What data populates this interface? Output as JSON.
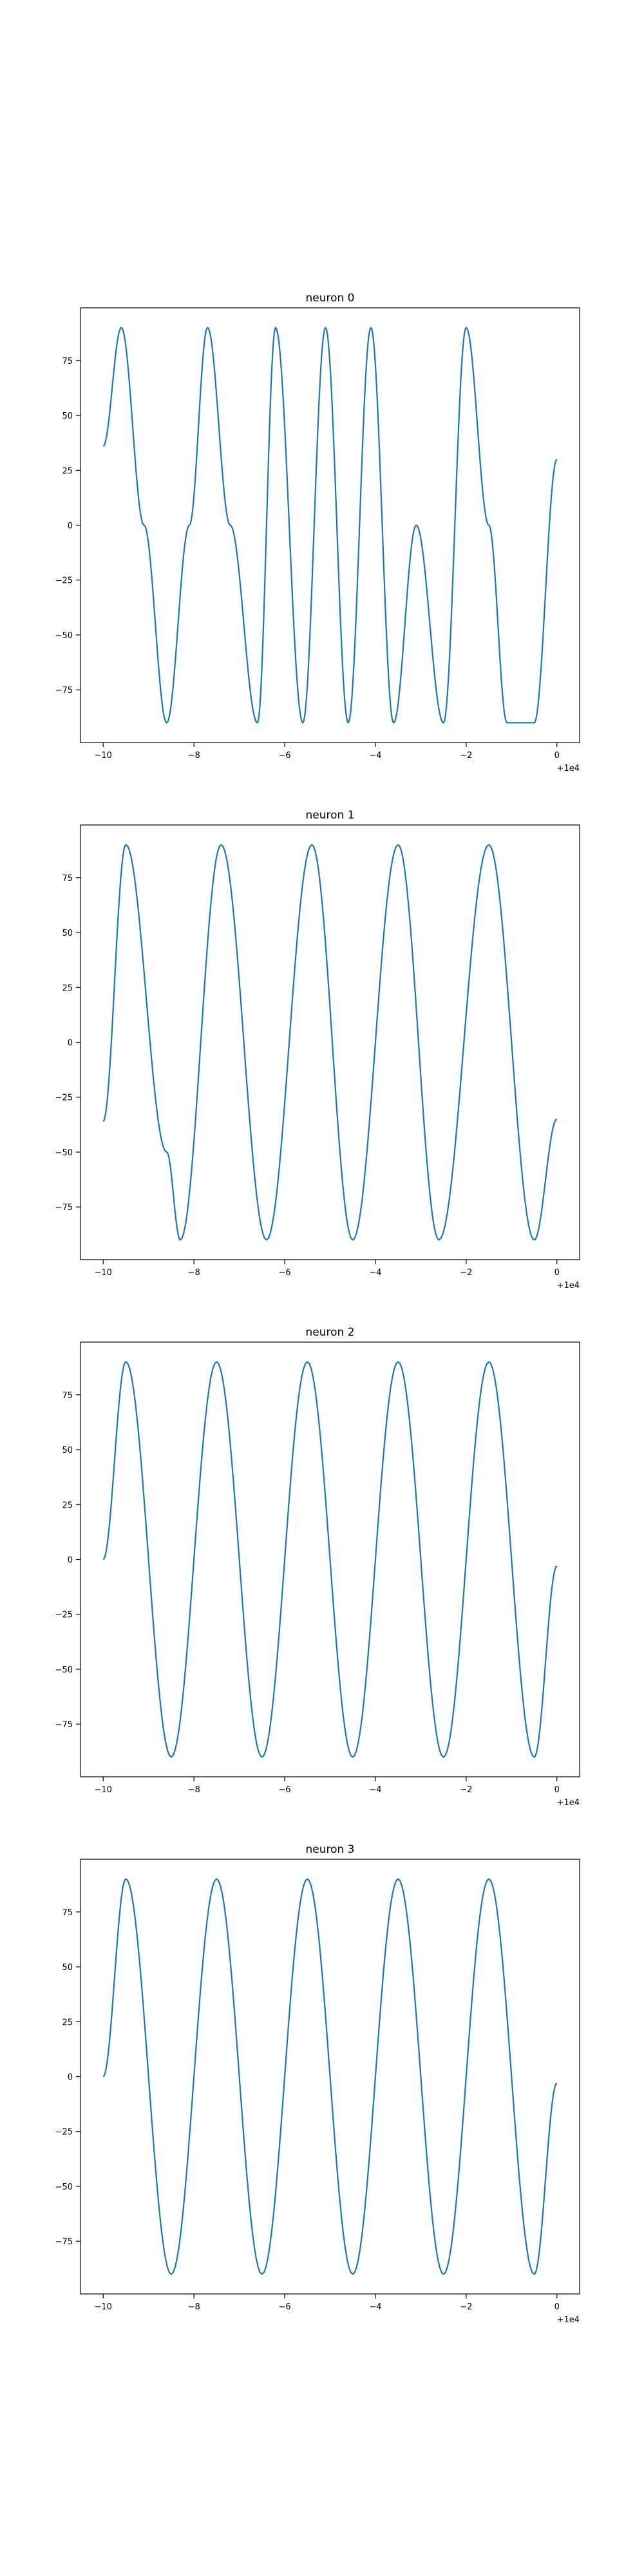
{
  "figure": {
    "line_color": "#1f77b4",
    "x_offset_label": "+1e4"
  },
  "chart_data": [
    {
      "type": "line",
      "title": "neuron 0",
      "xlabel": "",
      "ylabel": "",
      "x_offset_label": "+1e4",
      "xlim": [
        -10.5,
        0.5
      ],
      "ylim": [
        -99,
        99
      ],
      "x_ticks": [
        -10,
        -8,
        -6,
        -4,
        -2,
        0
      ],
      "x_tick_labels": [
        "−10",
        "−8",
        "−6",
        "−4",
        "−2",
        "0"
      ],
      "y_ticks": [
        75,
        50,
        25,
        0,
        -25,
        -50,
        -75
      ],
      "y_tick_labels": [
        "75",
        "50",
        "25",
        "0",
        "−25",
        "−50",
        "−75"
      ],
      "grid": false,
      "series": [
        {
          "color": "#1f77b4",
          "x": [
            -10.0,
            -9.6,
            -9.1,
            -8.6,
            -8.1,
            -7.7,
            -7.2,
            -6.6,
            -6.2,
            -5.6,
            -5.1,
            -4.6,
            -4.1,
            -3.6,
            -3.1,
            -2.5,
            -2.0,
            -1.5,
            -1.1,
            -0.5,
            0.0
          ],
          "y": [
            36,
            90,
            0,
            -90,
            0,
            90,
            0,
            -90,
            90,
            -90,
            90,
            -90,
            90,
            -90,
            0,
            -90,
            90,
            0,
            -90,
            -90,
            30
          ]
        }
      ]
    },
    {
      "type": "line",
      "title": "neuron 1",
      "xlabel": "",
      "ylabel": "",
      "x_offset_label": "+1e4",
      "xlim": [
        -10.5,
        0.5
      ],
      "ylim": [
        -99,
        99
      ],
      "x_ticks": [
        -10,
        -8,
        -6,
        -4,
        -2,
        0
      ],
      "x_tick_labels": [
        "−10",
        "−8",
        "−6",
        "−4",
        "−2",
        "0"
      ],
      "y_ticks": [
        75,
        50,
        25,
        0,
        -25,
        -50,
        -75
      ],
      "y_tick_labels": [
        "75",
        "50",
        "25",
        "0",
        "−25",
        "−50",
        "−75"
      ],
      "grid": false,
      "series": [
        {
          "color": "#1f77b4",
          "x": [
            -10.0,
            -9.5,
            -8.6,
            -8.3,
            -7.4,
            -6.4,
            -5.4,
            -4.5,
            -3.5,
            -2.6,
            -1.5,
            -0.5,
            0.0
          ],
          "y": [
            -36,
            90,
            -50,
            -90,
            90,
            -90,
            90,
            -90,
            90,
            -90,
            90,
            -90,
            -35
          ]
        }
      ]
    },
    {
      "type": "line",
      "title": "neuron 2",
      "xlabel": "",
      "ylabel": "",
      "x_offset_label": "+1e4",
      "xlim": [
        -10.5,
        0.5
      ],
      "ylim": [
        -99,
        99
      ],
      "x_ticks": [
        -10,
        -8,
        -6,
        -4,
        -2,
        0
      ],
      "x_tick_labels": [
        "−10",
        "−8",
        "−6",
        "−4",
        "−2",
        "0"
      ],
      "y_ticks": [
        75,
        50,
        25,
        0,
        -25,
        -50,
        -75
      ],
      "y_tick_labels": [
        "75",
        "50",
        "25",
        "0",
        "−25",
        "−50",
        "−75"
      ],
      "grid": false,
      "series": [
        {
          "color": "#1f77b4",
          "x": [
            -10.0,
            -9.5,
            -8.5,
            -7.5,
            -6.5,
            -5.5,
            -4.5,
            -3.5,
            -2.5,
            -1.5,
            -0.5,
            0.0
          ],
          "y": [
            0,
            90,
            -90,
            90,
            -90,
            90,
            -90,
            90,
            -90,
            90,
            -90,
            -3
          ]
        }
      ]
    },
    {
      "type": "line",
      "title": "neuron 3",
      "xlabel": "",
      "ylabel": "",
      "x_offset_label": "+1e4",
      "xlim": [
        -10.5,
        0.5
      ],
      "ylim": [
        -99,
        99
      ],
      "x_ticks": [
        -10,
        -8,
        -6,
        -4,
        -2,
        0
      ],
      "x_tick_labels": [
        "−10",
        "−8",
        "−6",
        "−4",
        "−2",
        "0"
      ],
      "y_ticks": [
        75,
        50,
        25,
        0,
        -25,
        -50,
        -75
      ],
      "y_tick_labels": [
        "75",
        "50",
        "25",
        "0",
        "−25",
        "−50",
        "−75"
      ],
      "grid": false,
      "series": [
        {
          "color": "#1f77b4",
          "x": [
            -10.0,
            -9.5,
            -8.5,
            -7.5,
            -6.5,
            -5.5,
            -4.5,
            -3.5,
            -2.5,
            -1.5,
            -0.5,
            0.0
          ],
          "y": [
            0,
            90,
            -90,
            90,
            -90,
            90,
            -90,
            90,
            -90,
            90,
            -90,
            -3
          ]
        }
      ]
    }
  ]
}
